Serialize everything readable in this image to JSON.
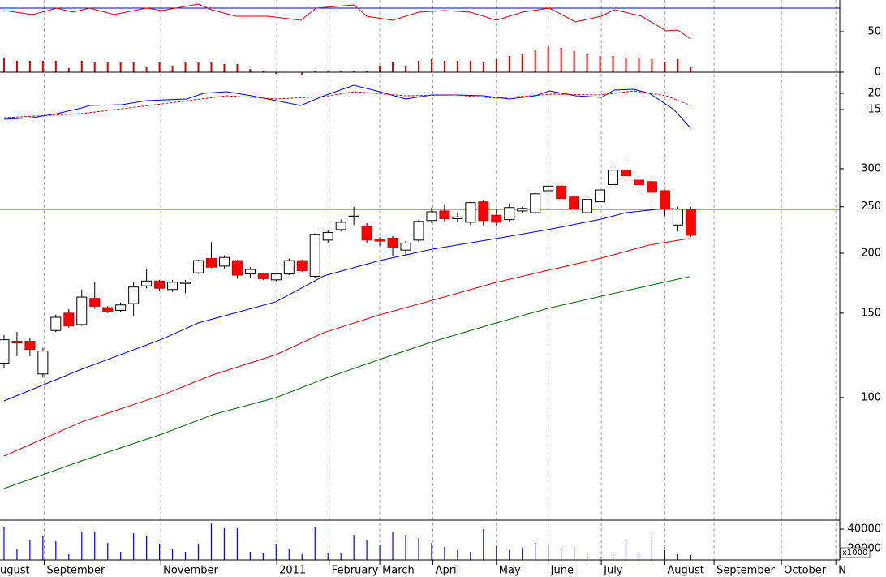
{
  "chart_data": [
    {
      "type": "line",
      "ylim": [
        0,
        89
      ],
      "yticks": [
        0,
        50
      ],
      "hline": 79,
      "hline_color": "#0000cc",
      "series": [
        {
          "color": "#dd0000",
          "x": [
            0,
            2.2,
            4.1,
            5.3,
            6.6,
            8.5,
            11.0,
            12.2,
            15.0,
            16.0,
            17.9,
            20.4,
            22.9,
            24.1,
            27.0,
            28.0,
            30.0,
            32.0,
            34.0,
            36.0,
            38.0,
            40.0,
            42.1,
            44.1,
            46.1,
            47.1,
            49.2,
            51.1,
            52.0,
            53.0
          ],
          "values": [
            76,
            71,
            79,
            74,
            79,
            71,
            79,
            76,
            84,
            77,
            69,
            69,
            64,
            79,
            83,
            69,
            64,
            74,
            76,
            74,
            64,
            74,
            79,
            62,
            69,
            77,
            69,
            51,
            52,
            41
          ]
        }
      ],
      "bars": {
        "color": "#dd0000",
        "values": [
          18,
          14,
          14,
          14,
          14,
          5,
          14,
          12,
          12,
          12,
          12,
          6,
          12,
          8,
          12,
          12,
          12,
          10,
          10,
          4,
          2,
          -2,
          0,
          -3,
          2,
          2,
          2,
          2,
          2,
          8,
          12,
          8,
          14,
          16,
          14,
          14,
          14,
          12,
          16,
          20,
          22,
          28,
          32,
          30,
          26,
          22,
          20,
          20,
          18,
          18,
          16,
          12,
          16,
          6
        ]
      }
    },
    {
      "type": "line",
      "ylim": [
        6.25,
        26.5
      ],
      "yticks": [
        15,
        20
      ],
      "series": [
        {
          "color": "#0000dd",
          "x": [
            0,
            2.2,
            4.1,
            6.0,
            6.6,
            9.1,
            11.0,
            14.1,
            15.4,
            17.2,
            19.1,
            21.0,
            22.9,
            24.7,
            27.0,
            29.0,
            31.0,
            33.0,
            35.0,
            37.0,
            39.0,
            41.0,
            42.1,
            44.1,
            46.1,
            47.1,
            48.6,
            49.8,
            51.7,
            53.0
          ],
          "values": [
            12,
            12.5,
            13.75,
            15.5,
            16.25,
            16.5,
            17.75,
            18.25,
            20,
            20.5,
            19.25,
            17.75,
            16.25,
            19.25,
            22.5,
            20.5,
            18.25,
            19.5,
            19.5,
            19.25,
            18.25,
            19.25,
            20.75,
            19.25,
            18.75,
            21,
            21.25,
            20,
            15,
            9.25
          ]
        },
        {
          "color": "#dd0000",
          "dash": true,
          "x": [
            0,
            6.0,
            12.2,
            17.2,
            21.0,
            24.7,
            27.0,
            31.0,
            34.8,
            38.0,
            42.3,
            46.1,
            48.6,
            51.1,
            53.0
          ],
          "values": [
            12.5,
            13.75,
            16.75,
            19.25,
            18.25,
            19,
            20.5,
            19.25,
            19.5,
            18.5,
            19.75,
            19.5,
            20.75,
            19.25,
            16.25
          ]
        }
      ]
    },
    {
      "type": "candlestick",
      "log_scale": true,
      "ylim": [
        55.5,
        347.8
      ],
      "yticks": [
        100,
        150,
        200,
        250,
        300
      ],
      "xlim": [
        -0.31,
        64.5
      ],
      "xticks": [
        {
          "value": -0.5,
          "label": "ugust"
        },
        {
          "value": 3.1,
          "label": "September"
        },
        {
          "value": 12.1,
          "label": "November"
        },
        {
          "value": 21.05,
          "label": "2011"
        },
        {
          "value": 25.1,
          "label": "February"
        },
        {
          "value": 29.0,
          "label": "March"
        },
        {
          "value": 33.1,
          "label": "April"
        },
        {
          "value": 38.0,
          "label": "May"
        },
        {
          "value": 42.0,
          "label": "June"
        },
        {
          "value": 46.1,
          "label": "July"
        },
        {
          "value": 51.0,
          "label": "August"
        },
        {
          "value": 54.8,
          "label": "September"
        },
        {
          "value": 60.0,
          "label": "October"
        },
        {
          "value": 64.2,
          "label": "N"
        }
      ],
      "grid": true,
      "up_color": "#ffffff",
      "down_color": "#ff0000",
      "hline": 247,
      "hline_color": "#0000cc",
      "open": [
        118,
        131,
        131,
        112,
        138,
        150,
        142,
        161,
        154,
        152,
        157,
        171,
        175,
        168,
        173,
        182,
        195,
        188,
        193,
        181,
        181,
        176,
        181,
        193,
        179,
        213,
        224,
        238,
        227,
        214,
        215,
        203,
        213,
        234,
        245,
        236,
        232,
        256,
        240,
        235,
        245,
        243,
        270,
        276,
        262,
        243,
        256,
        278,
        298,
        284,
        282,
        270,
        229,
        247
      ],
      "high": [
        135,
        137,
        133,
        127,
        149,
        153,
        168,
        174,
        155,
        158,
        174,
        185,
        176,
        176,
        176,
        194,
        211,
        198,
        194,
        187,
        182,
        182,
        195,
        194,
        220,
        224,
        235,
        250,
        231,
        216,
        217,
        212,
        235,
        249,
        253,
        243,
        256,
        258,
        247,
        254,
        250,
        267,
        277,
        282,
        264,
        261,
        273,
        301,
        311,
        287,
        285,
        271,
        250,
        250
      ],
      "low": [
        115,
        122,
        122,
        110,
        137,
        140,
        141,
        153,
        150,
        151,
        148,
        169,
        167,
        166,
        165,
        181,
        186,
        186,
        177,
        178,
        176,
        175,
        180,
        183,
        177,
        210,
        222,
        229,
        210,
        207,
        197,
        199,
        211,
        231,
        232,
        232,
        229,
        228,
        228,
        233,
        243,
        241,
        268,
        258,
        245,
        241,
        253,
        276,
        288,
        272,
        252,
        239,
        222,
        216
      ],
      "close": [
        132,
        130,
        126,
        125,
        147,
        141,
        162,
        155,
        151,
        156,
        170,
        175,
        169,
        174,
        174,
        193,
        187,
        196,
        180,
        185,
        177,
        181,
        193,
        184,
        219,
        221,
        232,
        239,
        213,
        212,
        206,
        210,
        233,
        244,
        236,
        238,
        255,
        234,
        232,
        249,
        248,
        266,
        276,
        260,
        248,
        259,
        271,
        298,
        290,
        278,
        268,
        247,
        247,
        218
      ],
      "series": [
        {
          "color": "#0000cc",
          "x": [
            0,
            6.0,
            12.2,
            15.0,
            21.0,
            24.7,
            29.0,
            33.1,
            38.0,
            42.0,
            46.1,
            48.0,
            51.1,
            52.6
          ],
          "values": [
            98.4,
            114.6,
            132.4,
            143.1,
            158.4,
            179.4,
            193.1,
            204,
            214.6,
            224,
            235.6,
            243,
            247.9,
            246.9
          ]
        },
        {
          "color": "#dd0000",
          "x": [
            0,
            6.0,
            12.2,
            16.1,
            21.0,
            24.7,
            29.0,
            33.1,
            38.0,
            42.0,
            46.1,
            49.8,
            52.9
          ],
          "values": [
            75.5,
            89.0,
            101.2,
            111.5,
            122.9,
            136.6,
            148.8,
            159.6,
            173.9,
            184.3,
            195.4,
            208.0,
            214.6
          ]
        },
        {
          "color": "#006600",
          "x": [
            0,
            6.0,
            12.2,
            16.1,
            21.0,
            24.7,
            29.0,
            33.1,
            38.0,
            42.0,
            46.1,
            49.8,
            52.9
          ],
          "values": [
            64.6,
            73.8,
            83.9,
            92.1,
            100,
            109.4,
            120.1,
            130.8,
            143.1,
            153.5,
            162.7,
            171.2,
            178.7
          ]
        }
      ]
    },
    {
      "type": "bar",
      "ylim": [
        8300,
        49200
      ],
      "yticks": [
        40000,
        20000
      ],
      "unit_label": "x1000",
      "color": "#0000ff",
      "values": [
        41700,
        19200,
        28300,
        33300,
        27500,
        14200,
        37500,
        37500,
        25800,
        16700,
        35800,
        33300,
        25000,
        19200,
        16700,
        25000,
        45800,
        40800,
        40800,
        16700,
        15000,
        25000,
        19200,
        14200,
        42500,
        15800,
        15000,
        34200,
        28300,
        23300,
        36700,
        34200,
        30800,
        25800,
        21700,
        18300,
        16700,
        40000,
        22500,
        18300,
        20800,
        25800,
        23300,
        19200,
        21700,
        14200,
        13300,
        15800,
        28300,
        15800,
        33300,
        18300,
        14200,
        13300
      ]
    }
  ]
}
